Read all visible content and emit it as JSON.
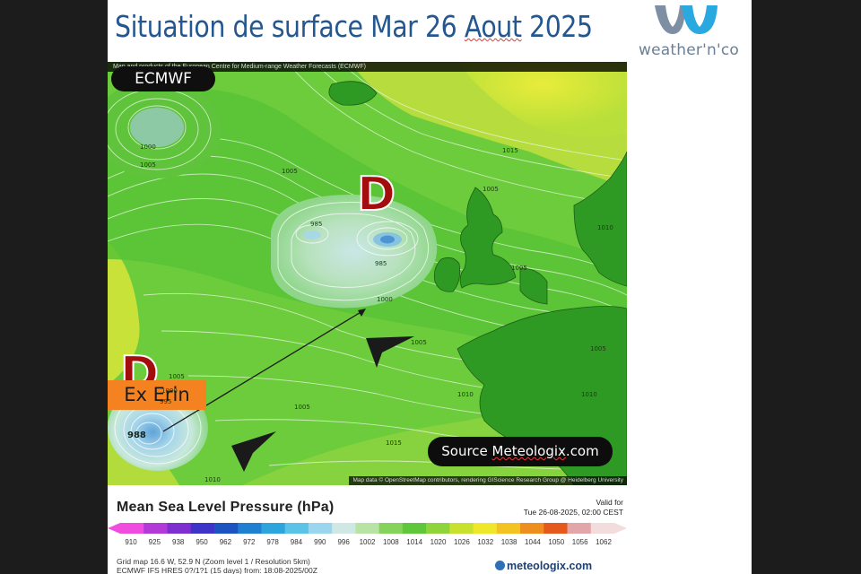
{
  "slide": {
    "title_prefix": "Situation de surface Mar 26 ",
    "title_squiggle": "Aout",
    "title_suffix": " 2025",
    "brand_name": "weather'n'co"
  },
  "map": {
    "credit_top": "Map and products of the European Centre for Medium-range Weather Forecasts (ECMWF)",
    "credit_bottom": "Map data © OpenStreetMap contributors, rendering GIScience Research Group @ Heidelberg University",
    "model_badge": "ECMWF",
    "low_symbol": "D",
    "storm_label": "Ex Erin",
    "source_prefix": "Source ",
    "source_squiggle": "Meteologix",
    "source_suffix": ".com",
    "center_values": [
      "988"
    ],
    "isobar_labels": [
      "1000",
      "1005",
      "1005",
      "985",
      "985",
      "1000",
      "1015",
      "1005",
      "1010",
      "1005",
      "1005",
      "1005",
      "1010",
      "1010",
      "1005",
      "1000",
      "995",
      "1005",
      "1015",
      "1010"
    ]
  },
  "legend": {
    "title": "Mean Sea Level Pressure (hPa)",
    "valid_label": "Valid for",
    "valid_time": "Tue 26-08-2025, 02:00 CEST",
    "ticks": [
      "910",
      "925",
      "938",
      "950",
      "962",
      "972",
      "978",
      "984",
      "990",
      "996",
      "1002",
      "1008",
      "1014",
      "1020",
      "1026",
      "1032",
      "1038",
      "1044",
      "1050",
      "1056",
      "1062"
    ],
    "colors": [
      "#f04ce0",
      "#b33ad8",
      "#7d2fd0",
      "#3f34c8",
      "#1d55c0",
      "#1f7fd0",
      "#2ea4dc",
      "#5cc3e8",
      "#9ad7ee",
      "#cfe8e6",
      "#b9e3a4",
      "#84d35a",
      "#5ec83a",
      "#8fd43a",
      "#c8e02e",
      "#efe82a",
      "#f3c322",
      "#ee8e1e",
      "#e55a1c",
      "#e2a6a8",
      "#f2dcdc"
    ],
    "grid_line1": "Grid map 16.6 W, 52.9 N (Zoom level 1 / Resolution 5km)",
    "grid_line2": "ECMWF IFS HRES 0?/1?1 (15 days) from: 18:08-2025/00Z",
    "footer_logo": "meteologix.com"
  }
}
